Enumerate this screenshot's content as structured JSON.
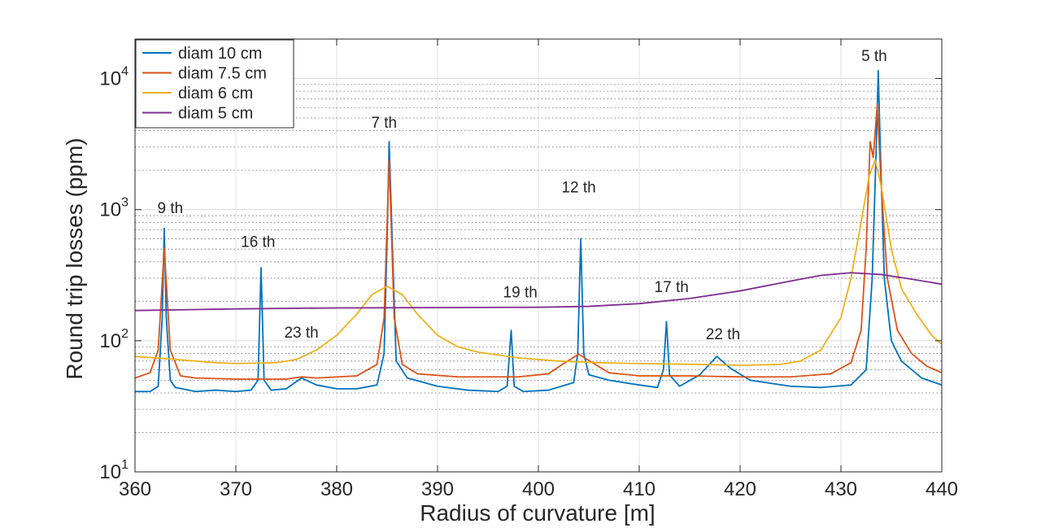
{
  "chart_data": {
    "type": "line",
    "title": "",
    "xlabel": "Radius of curvature [m]",
    "ylabel": "Round trip losses (ppm)",
    "xlim": [
      360,
      440
    ],
    "ylim": [
      10,
      20000
    ],
    "yscale": "log",
    "grid": true,
    "legend_position": "top-left",
    "x_ticks": [
      {
        "value": 360,
        "label": "360"
      },
      {
        "value": 370,
        "label": "370"
      },
      {
        "value": 380,
        "label": "380"
      },
      {
        "value": 390,
        "label": "390"
      },
      {
        "value": 400,
        "label": "400"
      },
      {
        "value": 410,
        "label": "410"
      },
      {
        "value": 420,
        "label": "420"
      },
      {
        "value": 430,
        "label": "430"
      },
      {
        "value": 440,
        "label": "440"
      }
    ],
    "y_ticks": [
      {
        "value": 10,
        "base": "10",
        "exp": "1"
      },
      {
        "value": 100,
        "base": "10",
        "exp": "2"
      },
      {
        "value": 1000,
        "base": "10",
        "exp": "3"
      },
      {
        "value": 10000,
        "base": "10",
        "exp": "4"
      }
    ],
    "series": [
      {
        "name": "diam 10 cm",
        "color": "#0072BD",
        "points": [
          [
            360,
            41
          ],
          [
            361.5,
            41
          ],
          [
            362.3,
            45
          ],
          [
            362.7,
            150
          ],
          [
            362.9,
            720
          ],
          [
            363.1,
            150
          ],
          [
            363.5,
            50
          ],
          [
            364,
            44
          ],
          [
            366,
            41
          ],
          [
            368,
            42
          ],
          [
            370,
            41
          ],
          [
            371.5,
            42
          ],
          [
            372.2,
            50
          ],
          [
            372.5,
            360
          ],
          [
            372.8,
            50
          ],
          [
            373.5,
            42
          ],
          [
            375,
            43
          ],
          [
            376.5,
            52
          ],
          [
            378,
            46
          ],
          [
            380,
            43
          ],
          [
            382,
            43
          ],
          [
            384,
            46
          ],
          [
            384.7,
            80
          ],
          [
            385,
            600
          ],
          [
            385.2,
            3300
          ],
          [
            385.5,
            600
          ],
          [
            385.9,
            70
          ],
          [
            387,
            52
          ],
          [
            390,
            45
          ],
          [
            393,
            42
          ],
          [
            396,
            41
          ],
          [
            396.9,
            45
          ],
          [
            397.3,
            120
          ],
          [
            397.6,
            45
          ],
          [
            398.5,
            41
          ],
          [
            401,
            42
          ],
          [
            403.5,
            48
          ],
          [
            403.9,
            80
          ],
          [
            404.2,
            600
          ],
          [
            404.5,
            80
          ],
          [
            405,
            55
          ],
          [
            407,
            50
          ],
          [
            410,
            46
          ],
          [
            411.8,
            44
          ],
          [
            412.4,
            60
          ],
          [
            412.7,
            140
          ],
          [
            413,
            55
          ],
          [
            414,
            45
          ],
          [
            416,
            55
          ],
          [
            417.7,
            76
          ],
          [
            419,
            62
          ],
          [
            421,
            50
          ],
          [
            425,
            45
          ],
          [
            428,
            44
          ],
          [
            431,
            46
          ],
          [
            432.5,
            60
          ],
          [
            433.1,
            300
          ],
          [
            433.5,
            3000
          ],
          [
            433.7,
            11500
          ],
          [
            433.9,
            3000
          ],
          [
            434.3,
            300
          ],
          [
            435,
            100
          ],
          [
            436,
            70
          ],
          [
            438,
            52
          ],
          [
            440,
            46
          ]
        ]
      },
      {
        "name": "diam 7.5 cm",
        "color": "#D95319",
        "points": [
          [
            360,
            52
          ],
          [
            361.5,
            57
          ],
          [
            362.3,
            85
          ],
          [
            362.9,
            510
          ],
          [
            363.5,
            85
          ],
          [
            364.5,
            54
          ],
          [
            366,
            52
          ],
          [
            370,
            51
          ],
          [
            375,
            51
          ],
          [
            376.5,
            53
          ],
          [
            378,
            52
          ],
          [
            382,
            54
          ],
          [
            384,
            66
          ],
          [
            384.7,
            150
          ],
          [
            385.2,
            2400
          ],
          [
            385.7,
            150
          ],
          [
            386.5,
            66
          ],
          [
            388,
            56
          ],
          [
            392,
            53
          ],
          [
            398,
            53
          ],
          [
            401,
            56
          ],
          [
            402.5,
            67
          ],
          [
            404,
            79
          ],
          [
            405.5,
            67
          ],
          [
            407,
            57
          ],
          [
            410,
            54
          ],
          [
            415,
            54
          ],
          [
            420,
            53
          ],
          [
            425,
            53
          ],
          [
            429,
            56
          ],
          [
            431,
            68
          ],
          [
            432,
            120
          ],
          [
            432.5,
            500
          ],
          [
            432.9,
            3300
          ],
          [
            433.2,
            2500
          ],
          [
            433.6,
            6300
          ],
          [
            434,
            1500
          ],
          [
            434.6,
            300
          ],
          [
            435.6,
            120
          ],
          [
            437,
            80
          ],
          [
            438.5,
            64
          ],
          [
            440,
            57
          ]
        ]
      },
      {
        "name": "diam 6 cm",
        "color": "#EDB120",
        "points": [
          [
            360,
            76
          ],
          [
            362,
            74
          ],
          [
            364,
            72
          ],
          [
            366,
            70
          ],
          [
            368,
            68
          ],
          [
            370,
            67
          ],
          [
            374,
            68
          ],
          [
            376,
            72
          ],
          [
            378,
            85
          ],
          [
            380,
            110
          ],
          [
            382,
            160
          ],
          [
            383.5,
            225
          ],
          [
            385,
            260
          ],
          [
            386.5,
            225
          ],
          [
            388,
            160
          ],
          [
            390,
            110
          ],
          [
            392,
            90
          ],
          [
            394,
            82
          ],
          [
            398,
            74
          ],
          [
            402,
            70
          ],
          [
            406,
            68
          ],
          [
            410,
            67
          ],
          [
            416,
            66
          ],
          [
            420,
            65
          ],
          [
            424,
            66
          ],
          [
            426,
            70
          ],
          [
            428,
            85
          ],
          [
            430,
            150
          ],
          [
            431,
            300
          ],
          [
            432,
            800
          ],
          [
            432.8,
            1800
          ],
          [
            433.4,
            2400
          ],
          [
            434,
            1500
          ],
          [
            435,
            500
          ],
          [
            436,
            250
          ],
          [
            437.5,
            160
          ],
          [
            439,
            110
          ],
          [
            440,
            94
          ]
        ]
      },
      {
        "name": "diam 5 cm",
        "color": "#7E2F8E",
        "points": [
          [
            360,
            170
          ],
          [
            370,
            175
          ],
          [
            380,
            178
          ],
          [
            390,
            179
          ],
          [
            400,
            180
          ],
          [
            405,
            183
          ],
          [
            410,
            192
          ],
          [
            415,
            210
          ],
          [
            420,
            240
          ],
          [
            425,
            285
          ],
          [
            428,
            315
          ],
          [
            431,
            330
          ],
          [
            434,
            320
          ],
          [
            437,
            295
          ],
          [
            440,
            270
          ]
        ]
      }
    ],
    "annotations": [
      {
        "text": "9 th",
        "x": 363.5,
        "y": 940
      },
      {
        "text": "16 th",
        "x": 372.2,
        "y": 520
      },
      {
        "text": "7 th",
        "x": 384.7,
        "y": 4200
      },
      {
        "text": "23 th",
        "x": 376.5,
        "y": 106
      },
      {
        "text": "19 th",
        "x": 398.2,
        "y": 215
      },
      {
        "text": "12 th",
        "x": 404,
        "y": 1350
      },
      {
        "text": "17 th",
        "x": 413.2,
        "y": 235
      },
      {
        "text": "22 th",
        "x": 418.3,
        "y": 103
      },
      {
        "text": "5 th",
        "x": 433.3,
        "y": 13600
      }
    ]
  }
}
